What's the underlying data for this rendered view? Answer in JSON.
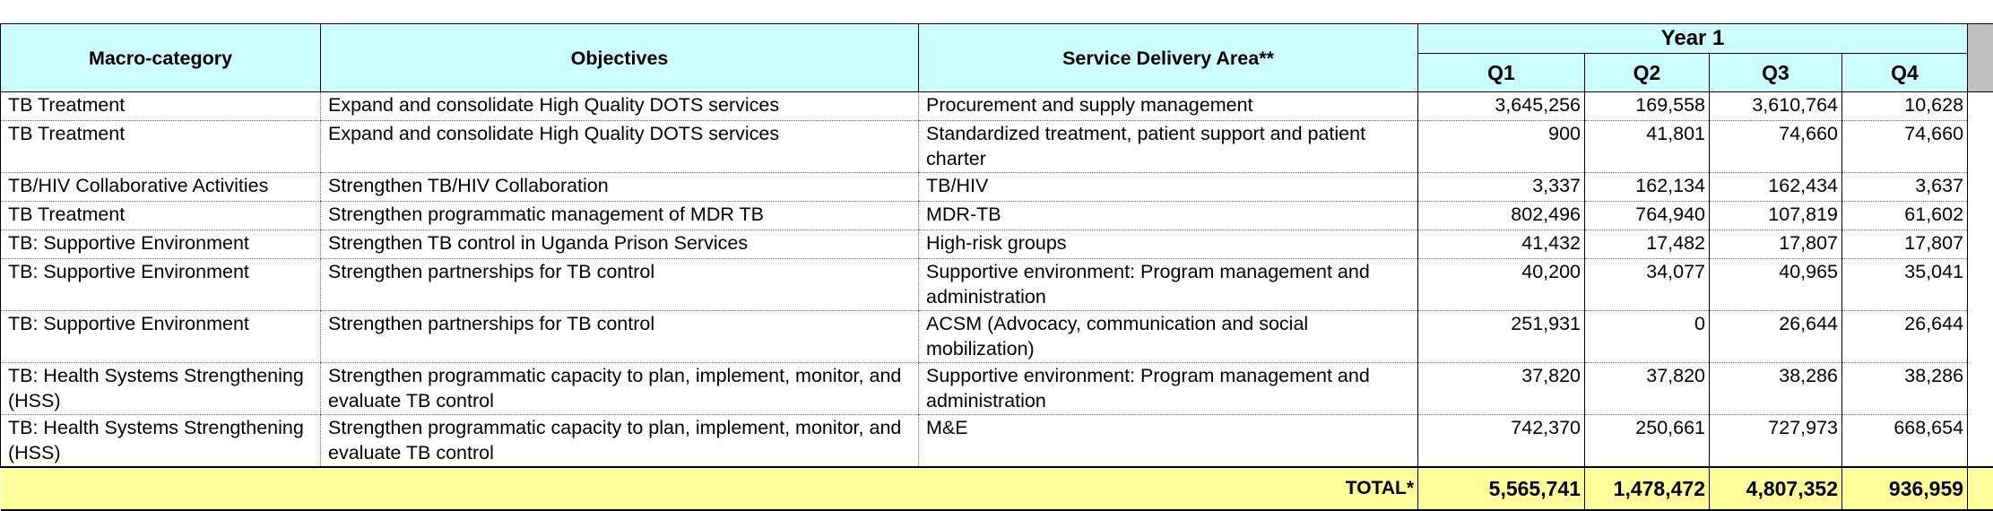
{
  "header": {
    "col1": "Macro-category",
    "col2": "Objectives",
    "col3": "Service Delivery Area**",
    "year": "Year 1",
    "quarters": [
      "Q1",
      "Q2",
      "Q3",
      "Q4"
    ]
  },
  "rows": [
    {
      "macro": "TB Treatment",
      "objective": "Expand and consolidate High Quality DOTS services",
      "sda": "Procurement and supply management",
      "q1": "3,645,256",
      "q2": "169,558",
      "q3": "3,610,764",
      "q4": "10,628"
    },
    {
      "macro": "TB Treatment",
      "objective": "Expand and consolidate High Quality DOTS services",
      "sda": "Standardized treatment, patient support and patient charter",
      "q1": "900",
      "q2": "41,801",
      "q3": "74,660",
      "q4": "74,660"
    },
    {
      "macro": "TB/HIV Collaborative Activities",
      "objective": "Strengthen TB/HIV Collaboration",
      "sda": "TB/HIV",
      "q1": "3,337",
      "q2": "162,134",
      "q3": "162,434",
      "q4": "3,637"
    },
    {
      "macro": "TB Treatment",
      "objective": "Strengthen programmatic management of MDR TB",
      "sda": "MDR-TB",
      "q1": "802,496",
      "q2": "764,940",
      "q3": "107,819",
      "q4": "61,602"
    },
    {
      "macro": "TB: Supportive Environment",
      "objective": "Strengthen TB control in Uganda Prison Services",
      "sda": "High-risk groups",
      "q1": "41,432",
      "q2": "17,482",
      "q3": "17,807",
      "q4": "17,807"
    },
    {
      "macro": "TB: Supportive Environment",
      "objective": "Strengthen partnerships for TB control",
      "sda": "Supportive environment: Program management and administration",
      "q1": "40,200",
      "q2": "34,077",
      "q3": "40,965",
      "q4": "35,041"
    },
    {
      "macro": "TB: Supportive Environment",
      "objective": "Strengthen partnerships for TB control",
      "sda": "ACSM (Advocacy, communication and social mobilization)",
      "q1": "251,931",
      "q2": "0",
      "q3": "26,644",
      "q4": "26,644"
    },
    {
      "macro": "TB: Health Systems Strengthening (HSS)",
      "objective": "Strengthen programmatic capacity to plan, implement, monitor, and evaluate TB control",
      "sda": "Supportive environment: Program management and administration",
      "q1": "37,820",
      "q2": "37,820",
      "q3": "38,286",
      "q4": "38,286"
    },
    {
      "macro": "TB: Health Systems Strengthening (HSS)",
      "objective": "Strengthen programmatic capacity to plan, implement, monitor, and evaluate TB control",
      "sda": "M&E",
      "q1": "742,370",
      "q2": "250,661",
      "q3": "727,973",
      "q4": "668,654"
    }
  ],
  "total": {
    "label": "TOTAL*",
    "q1": "5,565,741",
    "q2": "1,478,472",
    "q3": "4,807,352",
    "q4": "936,959"
  },
  "colors": {
    "header_bg": "#ccffff",
    "total_bg": "#ffff99",
    "scroll_block": "#c0c0c0"
  }
}
